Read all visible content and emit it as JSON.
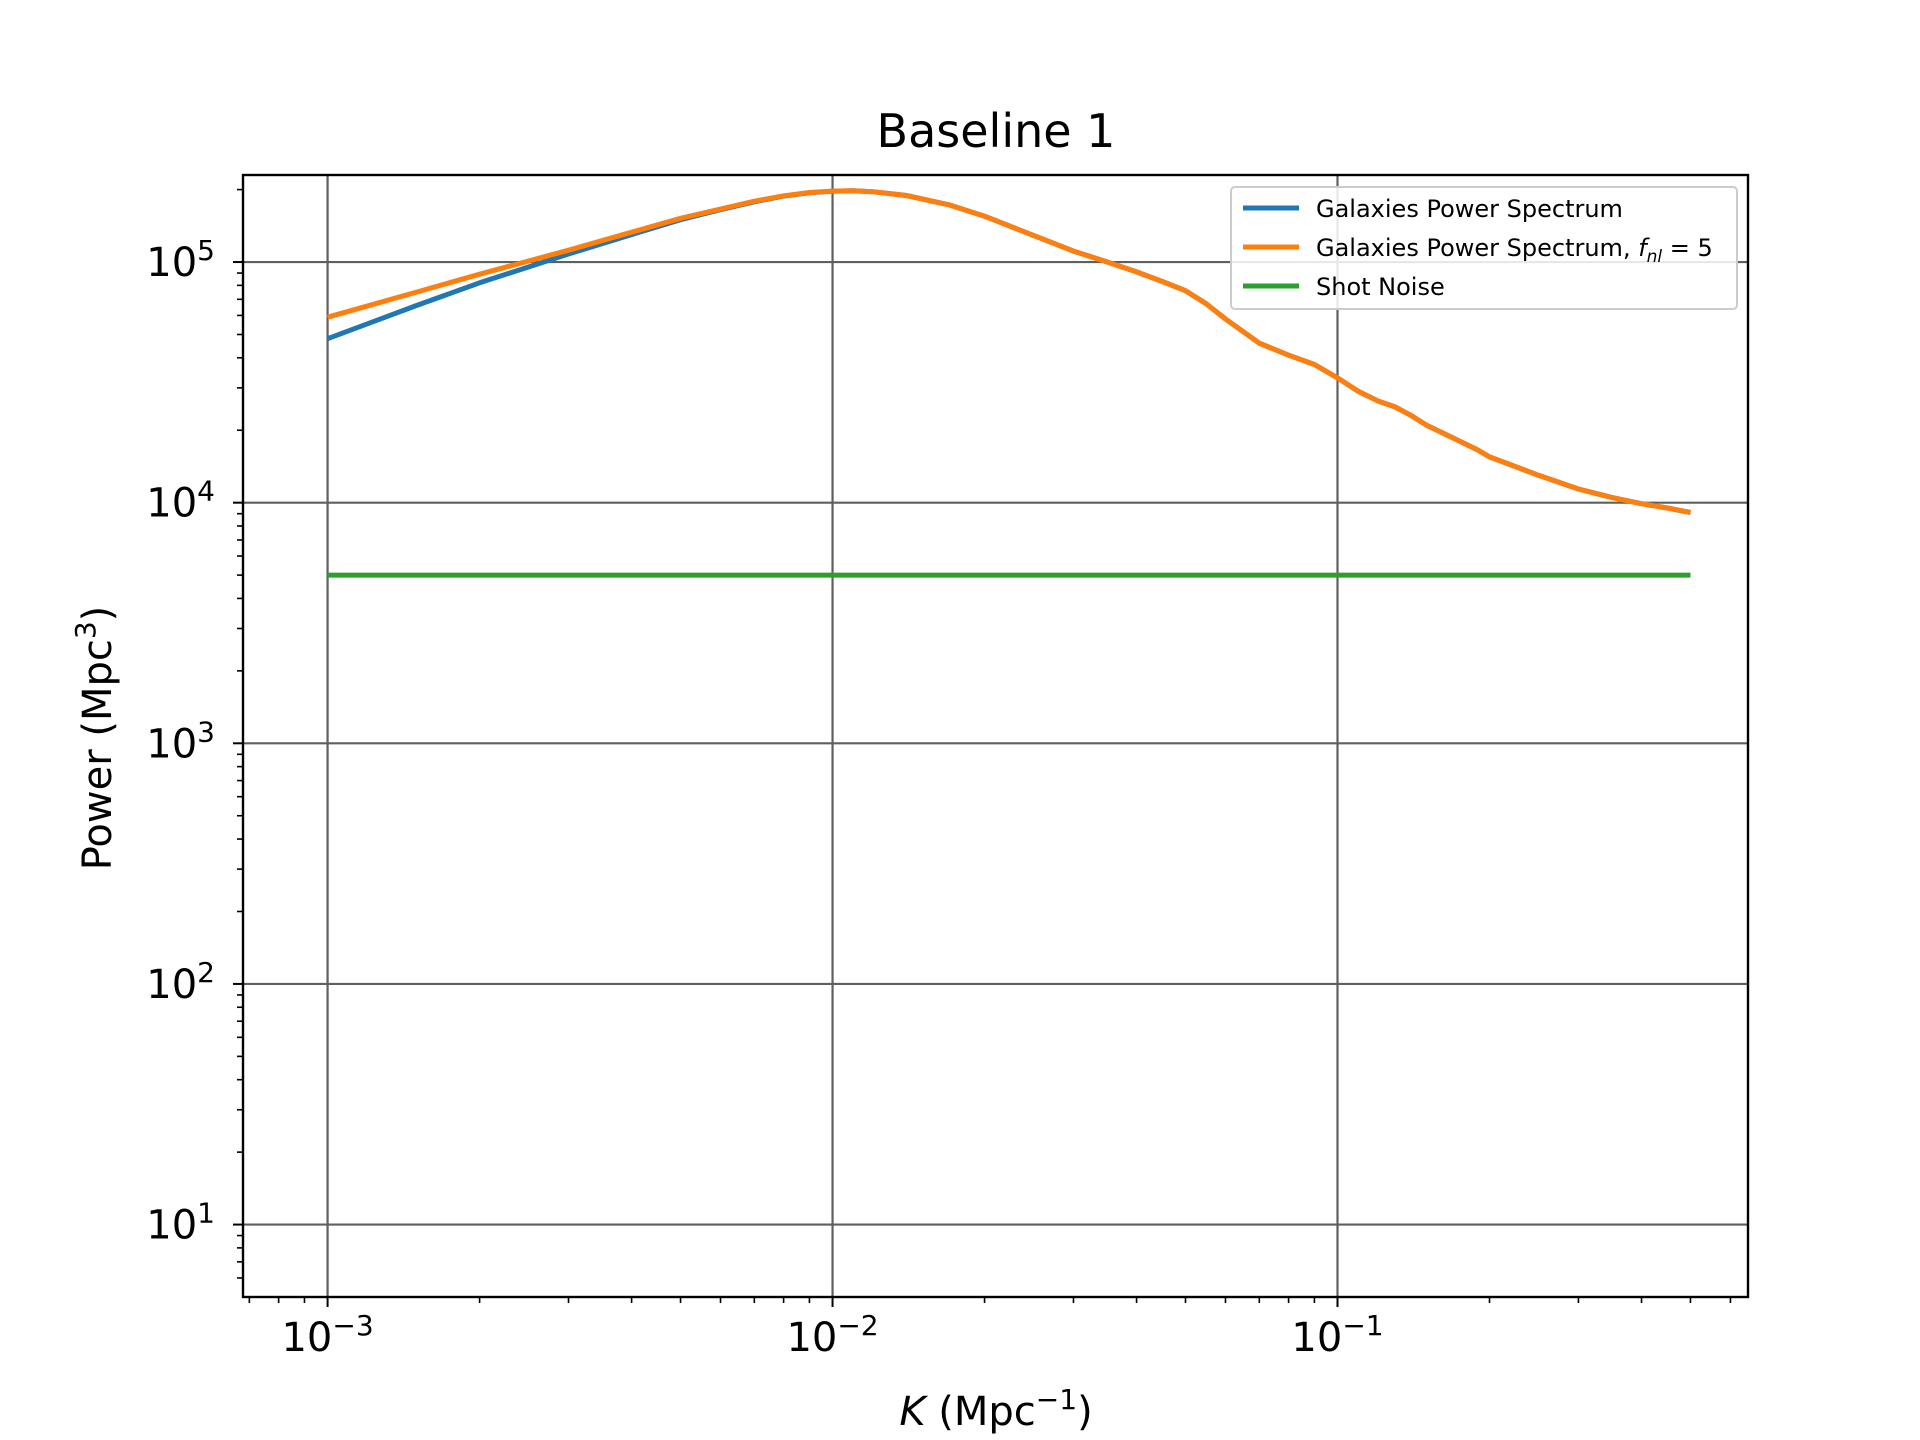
{
  "chart_data": {
    "type": "line",
    "title": "Baseline 1",
    "xlabel": {
      "main": "K",
      "unit_open": " (Mpc",
      "unit_exp": "−1",
      "unit_close": ")"
    },
    "ylabel": {
      "main": "Power (Mpc",
      "exp": "3",
      "close": ")"
    },
    "x_scale": "log",
    "y_scale": "log",
    "xlim": [
      0.00068,
      0.65
    ],
    "ylim": [
      5,
      230000
    ],
    "grid": true,
    "legend_position": "top-right",
    "x_ticks": [
      {
        "value": 0.001,
        "base": "10",
        "exp": "−3"
      },
      {
        "value": 0.01,
        "base": "10",
        "exp": "−2"
      },
      {
        "value": 0.1,
        "base": "10",
        "exp": "−1"
      }
    ],
    "y_ticks": [
      {
        "value": 10,
        "base": "10",
        "exp": "1"
      },
      {
        "value": 100,
        "base": "10",
        "exp": "2"
      },
      {
        "value": 1000,
        "base": "10",
        "exp": "3"
      },
      {
        "value": 10000,
        "base": "10",
        "exp": "4"
      },
      {
        "value": 100000,
        "base": "10",
        "exp": "5"
      }
    ],
    "series": [
      {
        "name": "Galaxies Power Spectrum",
        "color": "#1f77b4",
        "x": [
          0.001,
          0.0015,
          0.002,
          0.003,
          0.004,
          0.005,
          0.006,
          0.007,
          0.008,
          0.009,
          0.01,
          0.011,
          0.012,
          0.014,
          0.017,
          0.02,
          0.025,
          0.03,
          0.035,
          0.04,
          0.045,
          0.05,
          0.055,
          0.06,
          0.07,
          0.08,
          0.09,
          0.1,
          0.11,
          0.12,
          0.13,
          0.14,
          0.15,
          0.17,
          0.19,
          0.2,
          0.25,
          0.3,
          0.35,
          0.4,
          0.45,
          0.5
        ],
        "y": [
          48000,
          66000,
          82000,
          108000,
          130000,
          150000,
          165000,
          178000,
          188000,
          194000,
          197000,
          198000,
          196000,
          189000,
          173000,
          155000,
          129000,
          111000,
          100000,
          91000,
          83000,
          76000,
          67000,
          58000,
          46000,
          41000,
          37500,
          33000,
          29000,
          26500,
          25000,
          23000,
          21000,
          18500,
          16500,
          15500,
          13000,
          11400,
          10500,
          9900,
          9500,
          9100
        ]
      },
      {
        "name": "Galaxies Power Spectrum, ",
        "name_math": {
          "f": "f",
          "sub": "nl",
          "rest": " = 5"
        },
        "color": "#ff7f0e",
        "x": [
          0.001,
          0.0015,
          0.002,
          0.003,
          0.004,
          0.005,
          0.006,
          0.007,
          0.008,
          0.009,
          0.01,
          0.011,
          0.012,
          0.014,
          0.017,
          0.02,
          0.025,
          0.03,
          0.035,
          0.04,
          0.045,
          0.05,
          0.055,
          0.06,
          0.07,
          0.08,
          0.09,
          0.1,
          0.11,
          0.12,
          0.13,
          0.14,
          0.15,
          0.17,
          0.19,
          0.2,
          0.25,
          0.3,
          0.35,
          0.4,
          0.45,
          0.5
        ],
        "y": [
          59000,
          75000,
          89000,
          112000,
          133000,
          152000,
          166000,
          179000,
          188500,
          194500,
          197200,
          198000,
          196000,
          189000,
          173000,
          155000,
          129000,
          111000,
          100000,
          91000,
          83000,
          76000,
          67000,
          58000,
          46000,
          41000,
          37500,
          33000,
          29000,
          26500,
          25000,
          23000,
          21000,
          18500,
          16500,
          15500,
          13000,
          11400,
          10500,
          9900,
          9500,
          9100
        ]
      },
      {
        "name": "Shot Noise",
        "color": "#2ca02c",
        "x": [
          0.001,
          0.5
        ],
        "y": [
          5000,
          5000
        ]
      }
    ]
  }
}
